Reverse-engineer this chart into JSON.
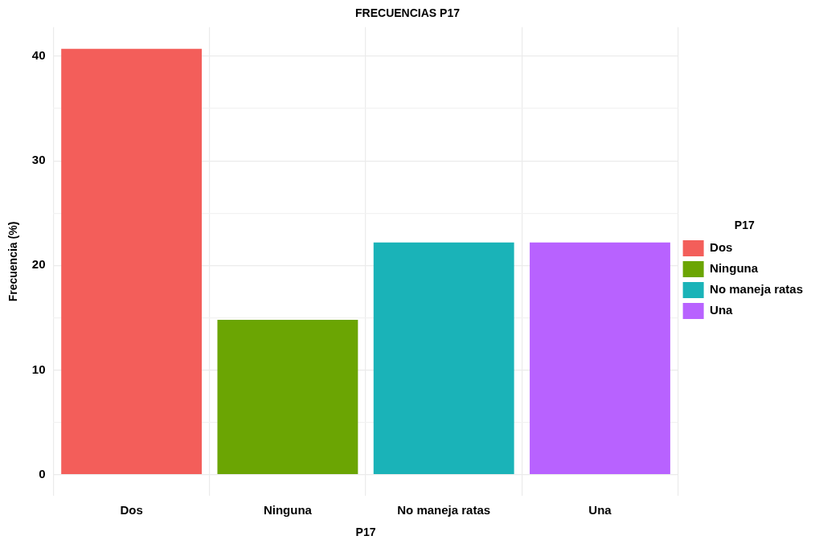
{
  "chart_data": {
    "type": "bar",
    "title": "FRECUENCIAS P17",
    "xlabel": "P17",
    "ylabel": "Frecuencia (%)",
    "legend_title": "P17",
    "categories": [
      "Dos",
      "Ninguna",
      "No maneja ratas",
      "Una"
    ],
    "series": [
      {
        "name": "Dos",
        "color": "#f35e5a",
        "values": [
          40.7,
          null,
          null,
          null
        ]
      },
      {
        "name": "Ninguna",
        "color": "#6ba503",
        "values": [
          null,
          14.8,
          null,
          null
        ]
      },
      {
        "name": "No maneja ratas",
        "color": "#1ab3b8",
        "values": [
          null,
          null,
          22.2,
          null
        ]
      },
      {
        "name": "Una",
        "color": "#b862ff",
        "values": [
          null,
          null,
          null,
          22.2
        ]
      }
    ],
    "ylim": [
      -2.04,
      42.78
    ],
    "yticks": [
      {
        "value": 0,
        "label": "0"
      },
      {
        "value": 5,
        "label": null
      },
      {
        "value": 10,
        "label": "10"
      },
      {
        "value": 15,
        "label": null
      },
      {
        "value": 20,
        "label": "20"
      },
      {
        "value": 25,
        "label": null
      },
      {
        "value": 30,
        "label": "30"
      },
      {
        "value": 35,
        "label": null
      },
      {
        "value": 40,
        "label": "40"
      }
    ],
    "grid": true,
    "legend": "right"
  }
}
